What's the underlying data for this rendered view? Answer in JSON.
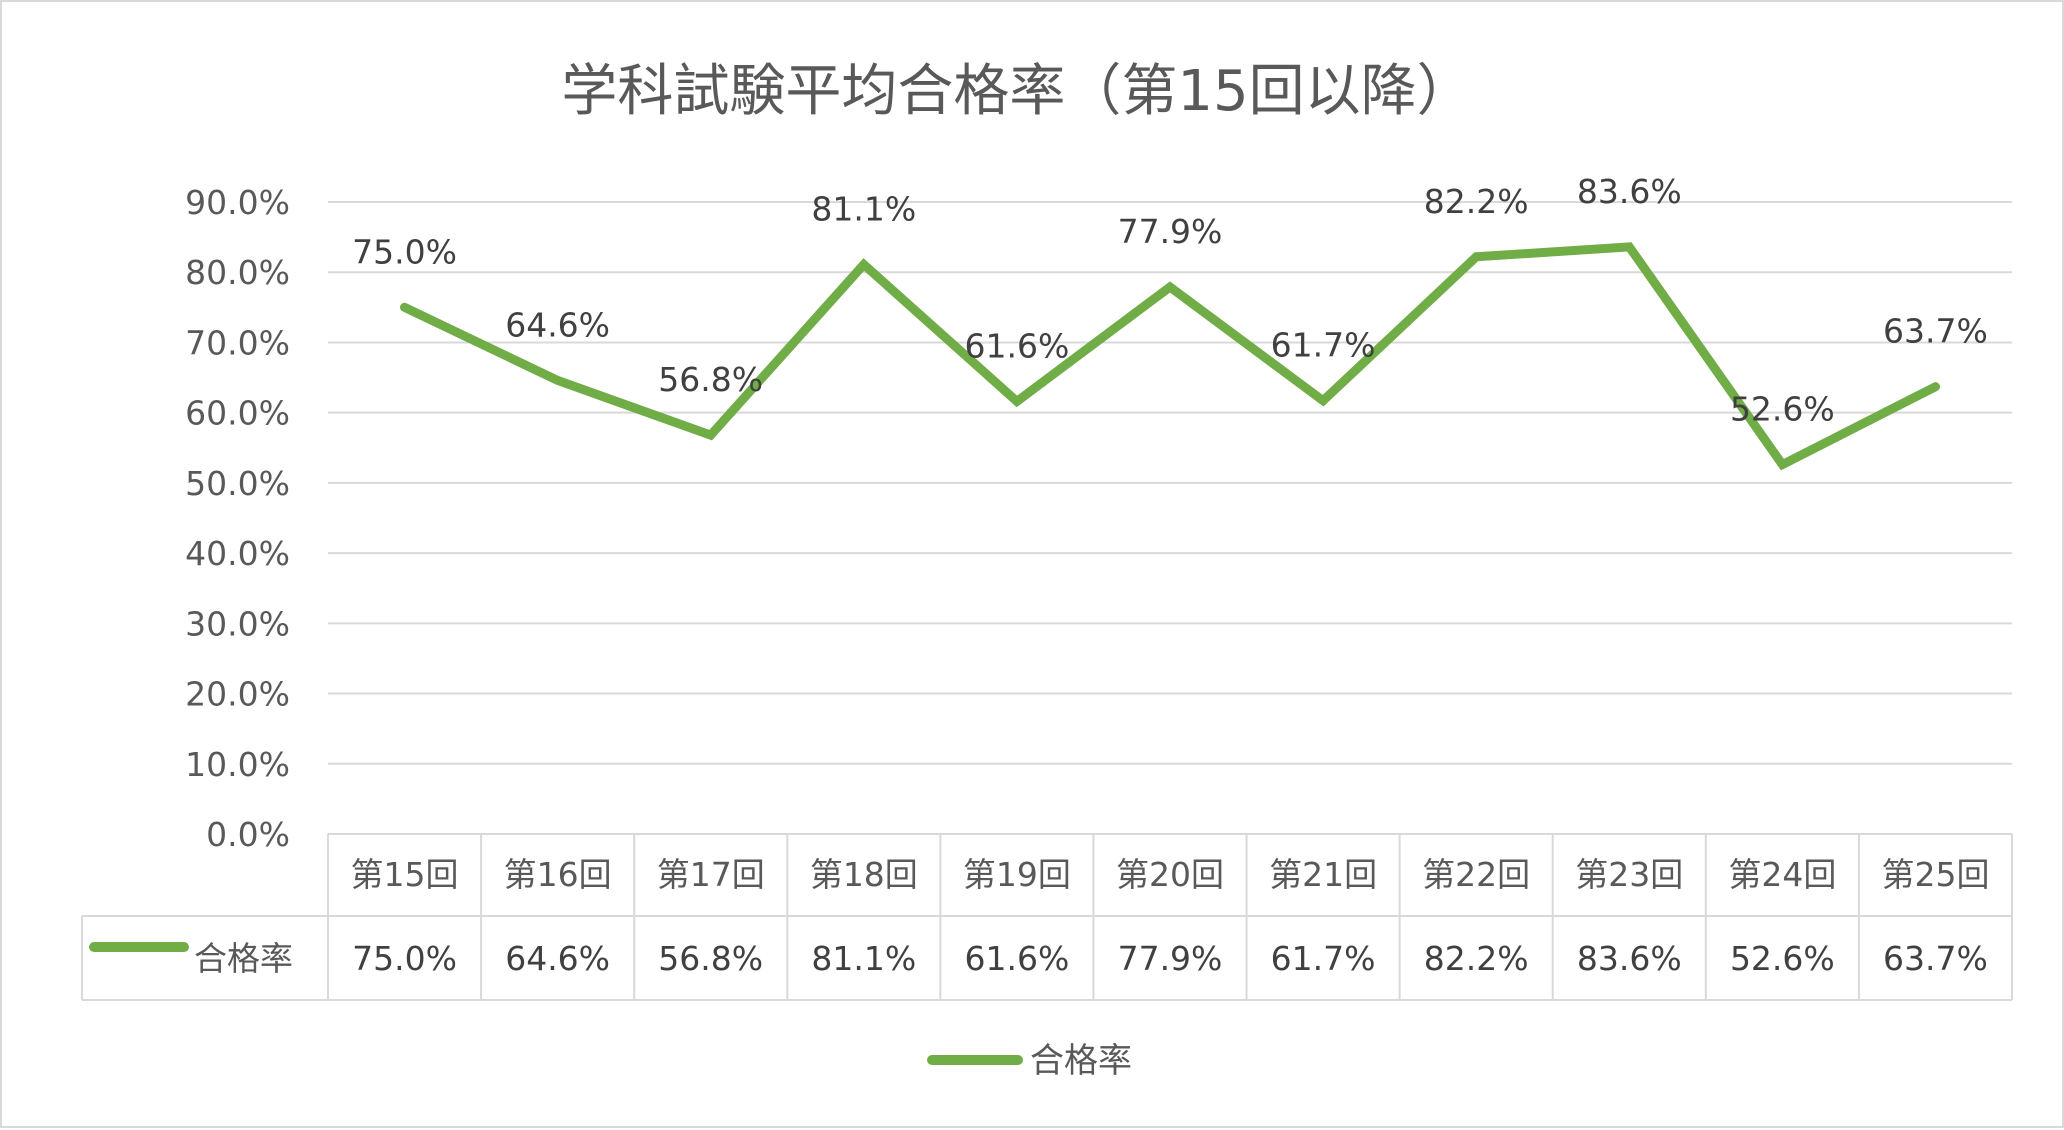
{
  "chart_data": {
    "type": "line",
    "title": "学科試験平均合格率（第15回以降）",
    "categories": [
      "第15回",
      "第16回",
      "第17回",
      "第18回",
      "第19回",
      "第20回",
      "第21回",
      "第22回",
      "第23回",
      "第24回",
      "第25回"
    ],
    "series": [
      {
        "name": "合格率",
        "values": [
          0.75,
          0.646,
          0.568,
          0.811,
          0.616,
          0.779,
          0.617,
          0.822,
          0.836,
          0.526,
          0.637
        ],
        "labels": [
          "75.0%",
          "64.6%",
          "56.8%",
          "81.1%",
          "61.6%",
          "77.9%",
          "61.7%",
          "82.2%",
          "83.6%",
          "52.6%",
          "63.7%"
        ],
        "color": "#70ad47"
      }
    ],
    "y_ticks": [
      "0.0%",
      "10.0%",
      "20.0%",
      "30.0%",
      "40.0%",
      "50.0%",
      "60.0%",
      "70.0%",
      "80.0%",
      "90.0%"
    ],
    "ylim": [
      0,
      0.9
    ],
    "grid": true,
    "data_table": true,
    "legend_position": "bottom",
    "colors": {
      "series": "#70ad47",
      "grid": "#d9d9d9",
      "text": "#595959",
      "label": "#404040"
    }
  }
}
